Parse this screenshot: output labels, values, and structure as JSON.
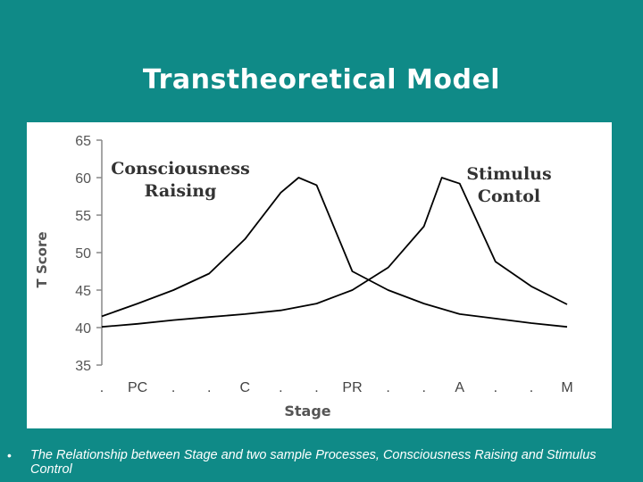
{
  "slide": {
    "title": "Transtheoretical Model",
    "caption": "The Relationship between Stage and two sample Processes, Consciousness Raising and Stimulus Control",
    "bullet": "•",
    "background_color": "#0f8a87"
  },
  "chart_data": {
    "type": "line",
    "xlabel": "Stage",
    "ylabel": "T Score",
    "ylim": [
      35,
      65
    ],
    "yticks": [
      35,
      40,
      45,
      50,
      55,
      60,
      65
    ],
    "categories": [
      ".",
      "PC",
      ".",
      ".",
      "C",
      ".",
      ".",
      "PR",
      ".",
      ".",
      "A",
      ".",
      ".",
      "M"
    ],
    "grid": false,
    "series": [
      {
        "name": "Consciousness Raising",
        "label_lines": [
          "Consciousness",
          "Raising"
        ],
        "x": [
          0,
          1,
          2,
          3,
          4,
          5,
          5.5,
          6,
          7,
          8,
          9,
          10,
          11,
          12,
          13
        ],
        "values": [
          41.5,
          43.2,
          45,
          47.2,
          51.8,
          58,
          60,
          59,
          47.5,
          45,
          43.2,
          41.8,
          41.2,
          40.6,
          40.1
        ]
      },
      {
        "name": "Stimulus Contol",
        "label_lines": [
          "Stimulus",
          "Contol"
        ],
        "x": [
          0,
          1,
          2,
          3,
          4,
          5,
          6,
          7,
          8,
          9,
          9.5,
          10,
          11,
          12,
          13
        ],
        "values": [
          40.1,
          40.5,
          41,
          41.4,
          41.8,
          42.3,
          43.2,
          45,
          48,
          53.5,
          60,
          59.2,
          48.8,
          45.5,
          43.1
        ]
      }
    ],
    "line_color": "#000000"
  }
}
